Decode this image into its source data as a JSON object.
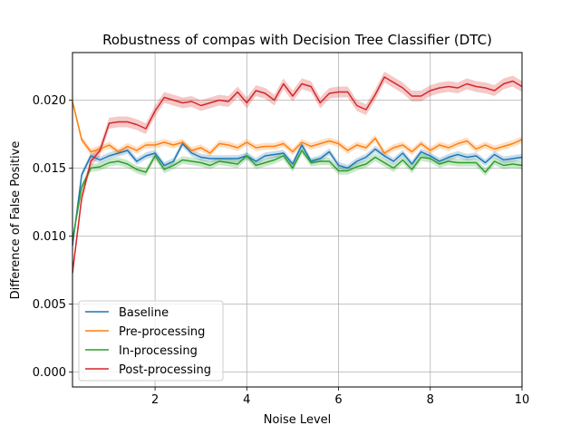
{
  "chart_data": {
    "type": "line",
    "title": "Robustness of compas with Decision Tree Classifier (DTC)",
    "xlabel": "Noise Level",
    "ylabel": "Difference of False Positive",
    "xlim": [
      0.2,
      10
    ],
    "ylim": [
      -0.0011,
      0.0235
    ],
    "xticks": [
      2,
      4,
      6,
      8,
      10
    ],
    "yticks": [
      0.0,
      0.005,
      0.01,
      0.015,
      0.02
    ],
    "ytick_labels": [
      "0.000",
      "0.005",
      "0.010",
      "0.015",
      "0.020"
    ],
    "grid": true,
    "legend_position": "lower-left",
    "x": [
      0.2,
      0.4,
      0.6,
      0.8,
      1.0,
      1.2,
      1.4,
      1.6,
      1.8,
      2.0,
      2.2,
      2.4,
      2.6,
      2.8,
      3.0,
      3.2,
      3.4,
      3.6,
      3.8,
      4.0,
      4.2,
      4.4,
      4.6,
      4.8,
      5.0,
      5.2,
      5.4,
      5.6,
      5.8,
      6.0,
      6.2,
      6.4,
      6.6,
      6.8,
      7.0,
      7.2,
      7.4,
      7.6,
      7.8,
      8.0,
      8.2,
      8.4,
      8.6,
      8.8,
      9.0,
      9.2,
      9.4,
      9.6,
      9.8,
      10.0
    ],
    "series": [
      {
        "name": "Baseline",
        "color": "#1f77b4",
        "band": 0.00025,
        "values": [
          0.0093,
          0.0145,
          0.0159,
          0.0156,
          0.0159,
          0.0161,
          0.0163,
          0.0155,
          0.0159,
          0.0161,
          0.0152,
          0.0155,
          0.0168,
          0.0161,
          0.0158,
          0.0157,
          0.0157,
          0.0157,
          0.0157,
          0.0159,
          0.0155,
          0.0159,
          0.016,
          0.0161,
          0.0153,
          0.0167,
          0.0155,
          0.0157,
          0.0162,
          0.0152,
          0.015,
          0.0155,
          0.0158,
          0.0164,
          0.0159,
          0.0155,
          0.0161,
          0.0153,
          0.0162,
          0.0159,
          0.0155,
          0.0158,
          0.016,
          0.0158,
          0.0159,
          0.0154,
          0.016,
          0.0156,
          0.0157,
          0.0158
        ]
      },
      {
        "name": "Pre-processing",
        "color": "#ff7f0e",
        "band": 0.00025,
        "values": [
          0.0199,
          0.0171,
          0.0162,
          0.0164,
          0.0167,
          0.0162,
          0.0166,
          0.0163,
          0.0167,
          0.0167,
          0.0169,
          0.0167,
          0.0169,
          0.0163,
          0.0165,
          0.0161,
          0.0168,
          0.0167,
          0.0165,
          0.0169,
          0.0165,
          0.0166,
          0.0166,
          0.0168,
          0.0162,
          0.0169,
          0.0166,
          0.0168,
          0.017,
          0.0168,
          0.0163,
          0.0167,
          0.0165,
          0.0172,
          0.0161,
          0.0165,
          0.0167,
          0.0162,
          0.0168,
          0.0163,
          0.0167,
          0.0165,
          0.0168,
          0.017,
          0.0164,
          0.0167,
          0.0164,
          0.0166,
          0.0168,
          0.0171
        ]
      },
      {
        "name": "In-processing",
        "color": "#2ca02c",
        "band": 0.00028,
        "values": [
          0.0097,
          0.0136,
          0.015,
          0.0151,
          0.0154,
          0.0155,
          0.0153,
          0.0149,
          0.0147,
          0.0159,
          0.0149,
          0.0152,
          0.0156,
          0.0155,
          0.0154,
          0.0152,
          0.0155,
          0.0154,
          0.0153,
          0.0159,
          0.0152,
          0.0154,
          0.0156,
          0.0159,
          0.015,
          0.0163,
          0.0154,
          0.0155,
          0.0155,
          0.0148,
          0.0148,
          0.0151,
          0.0153,
          0.0158,
          0.0154,
          0.015,
          0.0156,
          0.0149,
          0.0158,
          0.0157,
          0.0153,
          0.0155,
          0.0154,
          0.0154,
          0.0154,
          0.0147,
          0.0155,
          0.0152,
          0.0153,
          0.0152
        ]
      },
      {
        "name": "Post-processing",
        "color": "#d62728",
        "band": 0.0004,
        "values": [
          0.0073,
          0.0128,
          0.0155,
          0.0163,
          0.0183,
          0.0184,
          0.0184,
          0.0182,
          0.0179,
          0.0192,
          0.0202,
          0.02,
          0.0198,
          0.0199,
          0.0196,
          0.0198,
          0.02,
          0.0199,
          0.0206,
          0.0198,
          0.0207,
          0.0205,
          0.02,
          0.0212,
          0.0203,
          0.0212,
          0.021,
          0.0198,
          0.0205,
          0.0206,
          0.0206,
          0.0196,
          0.0193,
          0.0204,
          0.0217,
          0.0213,
          0.0209,
          0.0203,
          0.0203,
          0.0207,
          0.0209,
          0.021,
          0.0209,
          0.0212,
          0.021,
          0.0209,
          0.0207,
          0.0212,
          0.0214,
          0.021
        ]
      }
    ]
  }
}
